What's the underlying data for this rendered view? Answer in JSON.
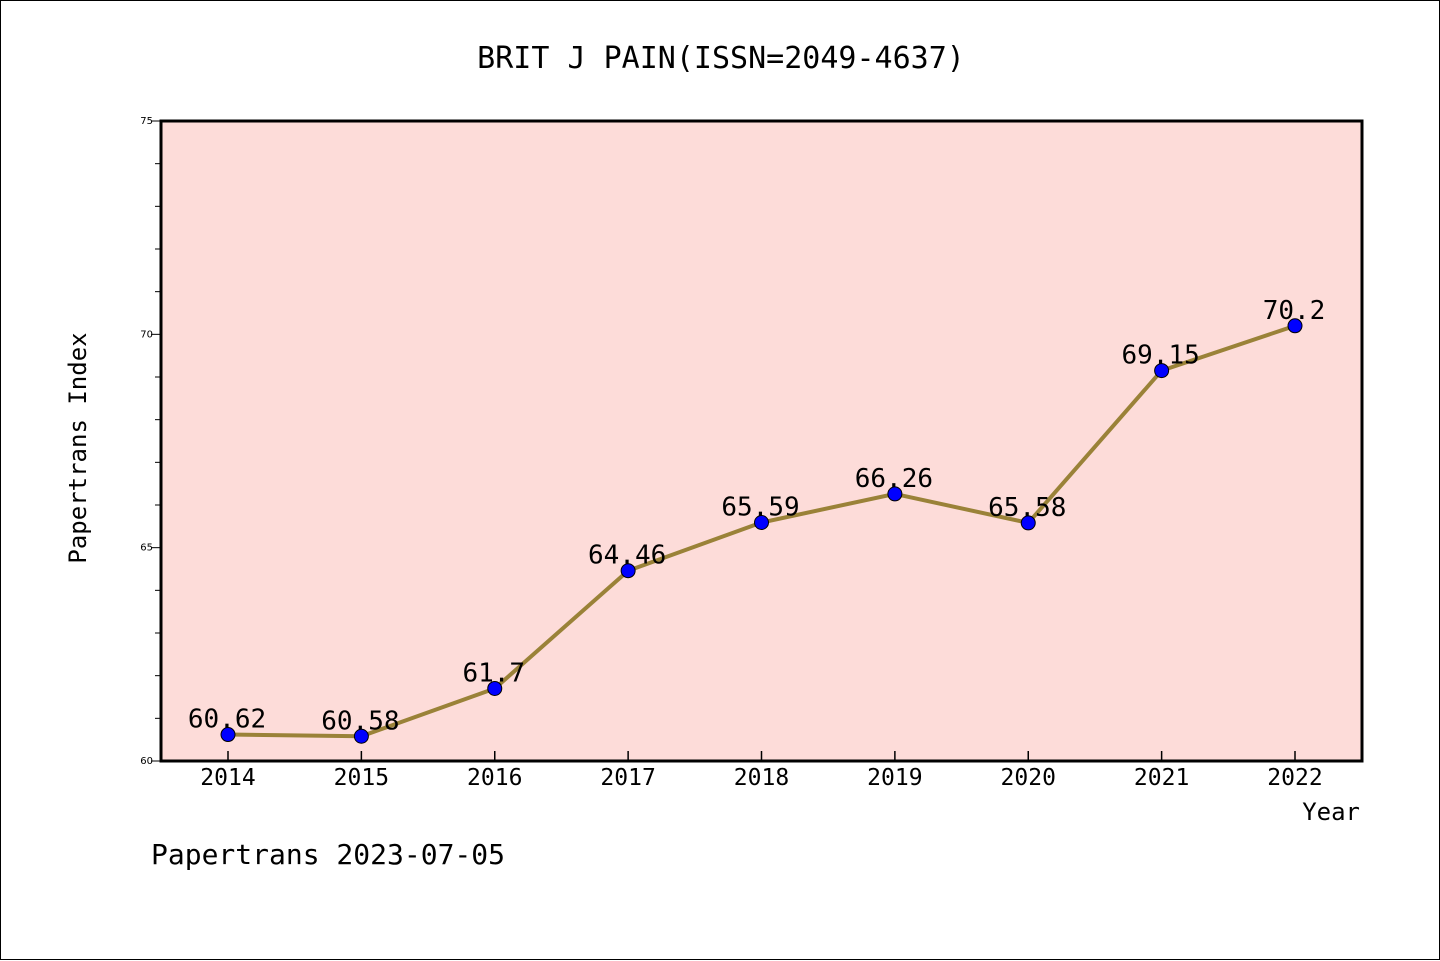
{
  "chart_data": {
    "type": "line",
    "title": "BRIT J PAIN(ISSN=2049-4637)",
    "xlabel": "Year",
    "ylabel": "Papertrans Index",
    "categories": [
      "2014",
      "2015",
      "2016",
      "2017",
      "2018",
      "2019",
      "2020",
      "2021",
      "2022"
    ],
    "series": [
      {
        "values": [
          60.62,
          60.58,
          61.7,
          64.46,
          65.59,
          66.26,
          65.58,
          69.15,
          70.2
        ],
        "labels": [
          "60.62",
          "60.58",
          "61.7",
          "64.46",
          "65.59",
          "66.26",
          "65.58",
          "69.15",
          "70.2"
        ],
        "line_color": "#9a8238",
        "marker_color": "#0000ff"
      }
    ],
    "ylim": [
      60,
      75
    ],
    "yticks": [
      "60",
      "65",
      "70",
      "75"
    ],
    "plot_background": "#fddcd9",
    "grid": false,
    "footer": "Papertrans 2023-07-05"
  }
}
